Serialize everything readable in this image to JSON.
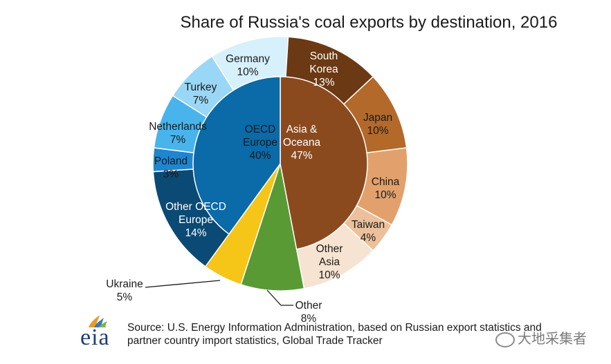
{
  "chart_data": {
    "type": "pie",
    "title": "Share of Russia's coal exports by destination, 2016",
    "inner_ring": [
      {
        "label": "OECD Europe",
        "value_label": "40%",
        "value": 40,
        "color": "#0b6aa8"
      },
      {
        "label": "Asia & Oceana",
        "value_label": "47%",
        "value": 47,
        "color": "#8b4a1e"
      },
      {
        "label": "Ukraine",
        "value_label": "5%",
        "value": 5,
        "color": "#f5c518"
      },
      {
        "label": "Other",
        "value_label": "8%",
        "value": 8,
        "color": "#5a9a35"
      }
    ],
    "outer_ring": [
      {
        "label": "South Korea",
        "value_label": "13%",
        "value": 13,
        "color": "#6b3914",
        "group": "Asia & Oceana"
      },
      {
        "label": "Japan",
        "value_label": "10%",
        "value": 10,
        "color": "#b3692a",
        "group": "Asia & Oceana"
      },
      {
        "label": "China",
        "value_label": "10%",
        "value": 10,
        "color": "#e2a16c",
        "group": "Asia & Oceana"
      },
      {
        "label": "Taiwan",
        "value_label": "4%",
        "value": 4,
        "color": "#ecc09a",
        "group": "Asia & Oceana"
      },
      {
        "label": "Other Asia",
        "value_label": "10%",
        "value": 10,
        "color": "#f6e3d1",
        "group": "Asia & Oceana"
      },
      {
        "label": "Other",
        "value_label": "8%",
        "value": 8,
        "color": "#5a9a35",
        "group": "Other"
      },
      {
        "label": "Ukraine",
        "value_label": "5%",
        "value": 5,
        "color": "#f5c518",
        "group": "Ukraine"
      },
      {
        "label": "Other OECD Europe",
        "value_label": "14%",
        "value": 14,
        "color": "#0a4a75",
        "group": "OECD Europe"
      },
      {
        "label": "Poland",
        "value_label": "3%",
        "value": 3,
        "color": "#1e86cf",
        "group": "OECD Europe"
      },
      {
        "label": "Netherlands",
        "value_label": "7%",
        "value": 7,
        "color": "#49b4ec",
        "group": "OECD Europe"
      },
      {
        "label": "Turkey",
        "value_label": "7%",
        "value": 7,
        "color": "#9ad7f6",
        "group": "OECD Europe"
      },
      {
        "label": "Germany",
        "value_label": "10%",
        "value": 10,
        "color": "#d6f0fc",
        "group": "OECD Europe"
      }
    ]
  },
  "source": {
    "text": "Source: U.S. Energy Information Administration, based on Russian export statistics and partner country import statistics, Global Trade Tracker"
  },
  "logo": {
    "text": "eia",
    "color": "#1d3f73"
  },
  "watermark": {
    "text": "大地采集者"
  }
}
